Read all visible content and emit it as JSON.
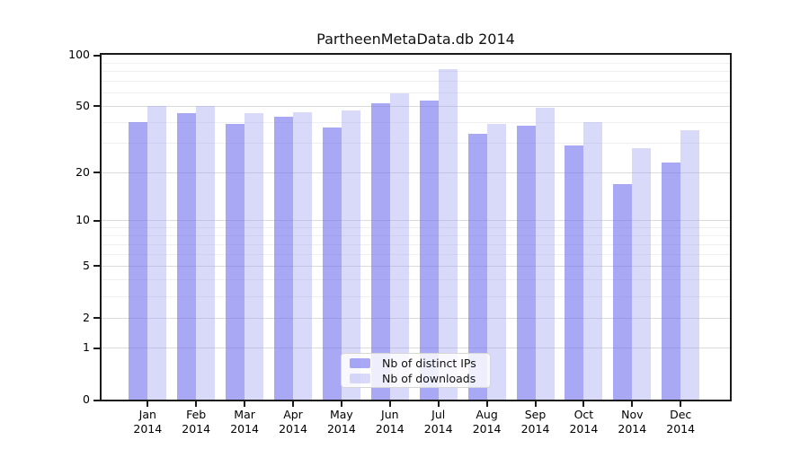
{
  "chart_data": {
    "type": "bar",
    "title": "PartheenMetaData.db 2014",
    "categories": [
      "Jan 2014",
      "Feb 2014",
      "Mar 2014",
      "Apr 2014",
      "May 2014",
      "Jun 2014",
      "Jul 2014",
      "Aug 2014",
      "Sep 2014",
      "Oct 2014",
      "Nov 2014",
      "Dec 2014"
    ],
    "series": [
      {
        "name": "Nb of distinct IPs",
        "color": "rgba(110,110,238,0.6)",
        "values": [
          40,
          45,
          39,
          43,
          37,
          52,
          54,
          34,
          38,
          29,
          17,
          23
        ]
      },
      {
        "name": "Nb of downloads",
        "color": "rgba(160,160,240,0.4)",
        "values": [
          50,
          50,
          45,
          46,
          47,
          59,
          82,
          39,
          49,
          40,
          28,
          36
        ]
      }
    ],
    "xlabel": "",
    "ylabel": "",
    "ylim": [
      0,
      100
    ],
    "yscale": "symlog (y proportional to log10(1+v))",
    "yticks": [
      0,
      1,
      2,
      5,
      10,
      20,
      50,
      100
    ],
    "yticks_minor": [
      3,
      4,
      6,
      7,
      8,
      9,
      30,
      40,
      60,
      70,
      80,
      90
    ],
    "grid": "horizontal",
    "legend_position": "bottom-center-inside"
  },
  "colors": {
    "bar_ips": "rgba(110,110,238,0.6)",
    "bar_downloads": "rgba(160,160,240,0.4)",
    "grid_major": "#dbdbdb",
    "grid_minor": "#efefef",
    "axis": "#1a1a1a",
    "legend_bg": "rgba(255,255,255,0.8)",
    "legend_border": "#d6d6d6"
  }
}
